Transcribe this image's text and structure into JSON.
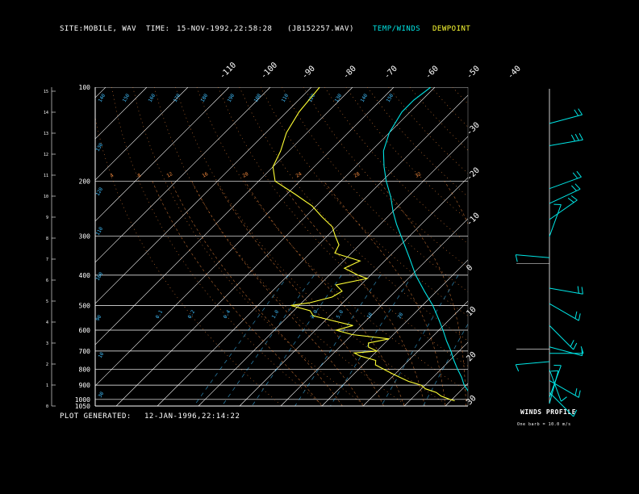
{
  "header": {
    "site_label": "SITE:",
    "site_value": "MOBILE, WAV",
    "time_label": "TIME:",
    "time_value": "15-NOV-1992,22:58:28",
    "file_value": "(JB152257.WAV)",
    "temp_legend": "TEMP/WINDS",
    "dew_legend": "DEWPOINT"
  },
  "footer": {
    "generated_label": "PLOT GENERATED:",
    "generated_value": "12-JAN-1996,22:14:22"
  },
  "wind_panel": {
    "title": "WINDS PROFILE",
    "scale_note": "One barb = 10.0 m/s"
  },
  "colors": {
    "temperature": "#00e5e5",
    "dewpoint": "#ffff33",
    "isobar": "#ffffff",
    "isotherm": "#ffffff",
    "dry_adiabat": "#ff9040",
    "moist_adiabat": "#ff9040",
    "mixing_ratio": "#40c0ff"
  },
  "chart_data": {
    "type": "line",
    "title": "",
    "xlabel": "",
    "ylabel": "",
    "pressure_ticks": [
      "100",
      "200",
      "300",
      "400",
      "500",
      "600",
      "700",
      "800",
      "900",
      "1000",
      "1050"
    ],
    "height_ticks": [
      "15",
      "14",
      "13",
      "12",
      "11",
      "10",
      "9",
      "8",
      "7",
      "6",
      "5",
      "4",
      "3",
      "2",
      "1",
      "0"
    ],
    "top_temp_ticks": [
      "-110",
      "-100",
      "-90",
      "-80",
      "-70",
      "-60",
      "-50",
      "-40"
    ],
    "right_temp_ticks": [
      "-30",
      "-20",
      "-10",
      "0",
      "10",
      "20",
      "30"
    ],
    "theta_labels": [
      "140",
      "150",
      "160",
      "170",
      "180",
      "190",
      "100",
      "110",
      "120",
      "130",
      "140",
      "150"
    ],
    "theta_low_labels": [
      "130",
      "120",
      "110",
      "100",
      "90"
    ],
    "moist_labels": [
      "4",
      "8",
      "12",
      "16",
      "20",
      "24",
      "28",
      "32"
    ],
    "mixing_labels": [
      "0.1",
      "0.2",
      "0.4",
      "1.0",
      "2.0",
      "5.0",
      "10",
      "20"
    ],
    "series": [
      {
        "key": "temperature",
        "values": [
          [
            1010,
            25.5
          ],
          [
            1000,
            25
          ],
          [
            950,
            22.5
          ],
          [
            925,
            21
          ],
          [
            900,
            19.5
          ],
          [
            850,
            17
          ],
          [
            800,
            14
          ],
          [
            750,
            11
          ],
          [
            700,
            8
          ],
          [
            650,
            4.5
          ],
          [
            600,
            1
          ],
          [
            550,
            -3
          ],
          [
            500,
            -7.5
          ],
          [
            450,
            -13
          ],
          [
            400,
            -19
          ],
          [
            350,
            -25
          ],
          [
            300,
            -32
          ],
          [
            275,
            -36
          ],
          [
            250,
            -40
          ],
          [
            225,
            -44
          ],
          [
            200,
            -49
          ],
          [
            180,
            -53
          ],
          [
            160,
            -57
          ],
          [
            140,
            -60
          ],
          [
            120,
            -62
          ],
          [
            110,
            -62
          ],
          [
            100,
            -61
          ]
        ]
      },
      {
        "key": "dewpoint",
        "values": [
          [
            1010,
            21
          ],
          [
            1000,
            19.5
          ],
          [
            975,
            16.5
          ],
          [
            950,
            14.5
          ],
          [
            925,
            11
          ],
          [
            900,
            9
          ],
          [
            875,
            5
          ],
          [
            850,
            2
          ],
          [
            825,
            -1
          ],
          [
            800,
            -4
          ],
          [
            775,
            -7
          ],
          [
            750,
            -8
          ],
          [
            725,
            -13
          ],
          [
            710,
            -15
          ],
          [
            700,
            -10
          ],
          [
            680,
            -13
          ],
          [
            660,
            -14
          ],
          [
            640,
            -10
          ],
          [
            620,
            -20
          ],
          [
            600,
            -25
          ],
          [
            580,
            -22
          ],
          [
            560,
            -28
          ],
          [
            540,
            -34
          ],
          [
            520,
            -36
          ],
          [
            500,
            -42
          ],
          [
            490,
            -38
          ],
          [
            470,
            -34
          ],
          [
            450,
            -33
          ],
          [
            430,
            -36
          ],
          [
            410,
            -30
          ],
          [
            400,
            -33
          ],
          [
            380,
            -38
          ],
          [
            360,
            -36
          ],
          [
            340,
            -44
          ],
          [
            320,
            -45
          ],
          [
            300,
            -48
          ],
          [
            280,
            -51
          ],
          [
            260,
            -56
          ],
          [
            240,
            -61
          ],
          [
            220,
            -68
          ],
          [
            200,
            -76
          ],
          [
            180,
            -80
          ],
          [
            160,
            -82
          ],
          [
            140,
            -85
          ],
          [
            120,
            -87
          ],
          [
            100,
            -88
          ]
        ]
      }
    ],
    "winds": [
      {
        "p": 160,
        "dir": 255,
        "spd": 24
      },
      {
        "p": 185,
        "dir": 260,
        "spd": 26
      },
      {
        "p": 245,
        "dir": 250,
        "spd": 22
      },
      {
        "p": 270,
        "dir": 245,
        "spd": 20
      },
      {
        "p": 300,
        "dir": 235,
        "spd": 17
      },
      {
        "p": 335,
        "dir": 200,
        "spd": 12
      },
      {
        "p": 385,
        "dir": 95,
        "spd": 8
      },
      {
        "p": 470,
        "dir": 280,
        "spd": 15
      },
      {
        "p": 520,
        "dir": 300,
        "spd": 18
      },
      {
        "p": 600,
        "dir": 315,
        "spd": 15
      },
      {
        "p": 690,
        "dir": 285,
        "spd": 10
      },
      {
        "p": 720,
        "dir": 270,
        "spd": 12
      },
      {
        "p": 760,
        "dir": 85,
        "spd": 8
      },
      {
        "p": 800,
        "dir": 340,
        "spd": 9
      },
      {
        "p": 860,
        "dir": 300,
        "spd": 15
      },
      {
        "p": 930,
        "dir": 315,
        "spd": 12
      },
      {
        "p": 960,
        "dir": 200,
        "spd": 6
      },
      {
        "p": 1000,
        "dir": 195,
        "spd": 5
      }
    ]
  }
}
